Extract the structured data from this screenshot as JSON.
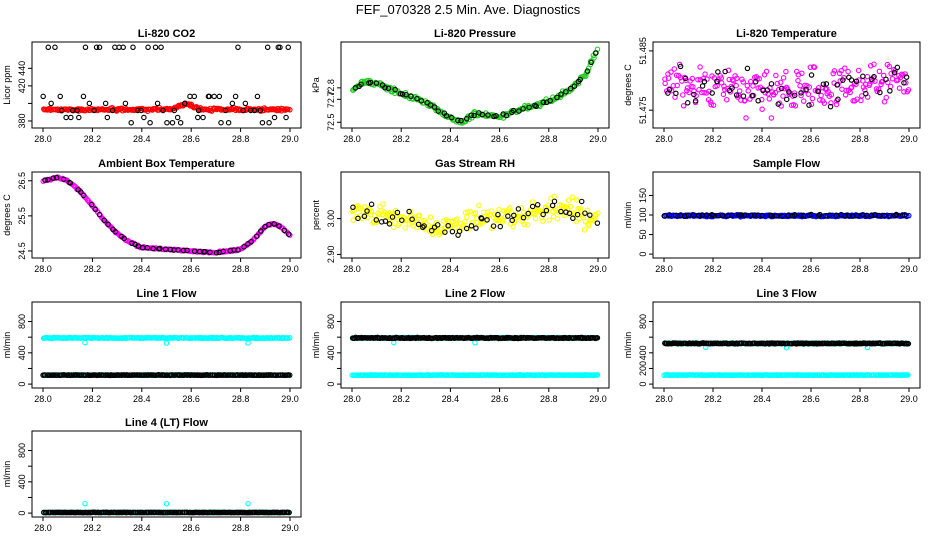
{
  "title": "FEF_070328  2.5 Min. Ave. Diagnostics",
  "colors": {
    "black": "#000000",
    "red": "#ff0000",
    "green": "#22cc22",
    "magenta": "#ff00ff",
    "yellow": "#ffff00",
    "blue": "#0000ff",
    "cyan": "#00ffff"
  },
  "chart_data": [
    {
      "id": "co2",
      "type": "scatter",
      "title": "Li-820 CO2",
      "ylabel": "Licor ppm",
      "xlim": [
        28.0,
        29.0
      ],
      "ylim": [
        372,
        470
      ],
      "yticks": [
        380,
        400,
        420,
        440
      ],
      "ytick_labels": [
        "380",
        "",
        "420",
        "440"
      ],
      "xticks": [
        28.0,
        28.2,
        28.4,
        28.6,
        28.8,
        29.0
      ],
      "series": [
        {
          "name": "dense",
          "color": "red",
          "baseline": 393,
          "noise": 1.5,
          "bump": {
            "center": 28.58,
            "width": 0.04,
            "height": 6
          }
        },
        {
          "name": "sparse",
          "color": "black",
          "levels": [
            378,
            384,
            392,
            400,
            408,
            464
          ]
        }
      ]
    },
    {
      "id": "pressure",
      "type": "scatter",
      "title": "Li-820 Pressure",
      "ylabel": "kPa",
      "xlim": [
        28.0,
        29.0
      ],
      "ylim": [
        72.45,
        73.2
      ],
      "yticks": [
        72.5,
        72.7,
        72.8
      ],
      "ytick_labels": [
        "72.5",
        "72.7",
        "72.8"
      ],
      "xticks": [
        28.0,
        28.2,
        28.4,
        28.6,
        28.8,
        29.0
      ],
      "curve_x": [
        28.0,
        28.05,
        28.1,
        28.2,
        28.3,
        28.38,
        28.45,
        28.5,
        28.6,
        28.7,
        28.8,
        28.9,
        28.95,
        29.0
      ],
      "curve_y": [
        72.78,
        72.85,
        72.84,
        72.75,
        72.68,
        72.56,
        72.5,
        72.58,
        72.55,
        72.62,
        72.68,
        72.8,
        72.92,
        73.15
      ],
      "series": [
        {
          "name": "dense",
          "color": "green",
          "noise": 0.02
        },
        {
          "name": "sparse",
          "color": "black"
        }
      ]
    },
    {
      "id": "li820temp",
      "type": "scatter",
      "title": "Li-820 Temperature",
      "ylabel": "degrees C",
      "xlim": [
        28.0,
        29.0
      ],
      "ylim": [
        51.472,
        51.4865
      ],
      "yticks": [
        51.475,
        51.485
      ],
      "ytick_labels": [
        "51.475",
        "51.485"
      ],
      "xticks": [
        28.0,
        28.2,
        28.4,
        28.6,
        28.8,
        29.0
      ],
      "curve_x": [
        28.0,
        28.2,
        28.4,
        28.6,
        28.8,
        29.0
      ],
      "curve_y": [
        51.4795,
        51.4785,
        51.478,
        51.4785,
        51.4795,
        51.4805
      ],
      "series": [
        {
          "name": "dense",
          "color": "magenta",
          "noise": 0.0035
        },
        {
          "name": "sparse",
          "color": "black",
          "noise": 0.003
        }
      ]
    },
    {
      "id": "boxtemp",
      "type": "scatter",
      "title": "Ambient Box Temperature",
      "ylabel": "degrees C",
      "xlim": [
        28.0,
        29.0
      ],
      "ylim": [
        24.3,
        26.75
      ],
      "yticks": [
        24.5,
        25.5,
        26.5
      ],
      "ytick_labels": [
        "24.5",
        "25.5",
        "26.5"
      ],
      "xticks": [
        28.0,
        28.2,
        28.4,
        28.6,
        28.8,
        29.0
      ],
      "curve_x": [
        28.0,
        28.06,
        28.1,
        28.15,
        28.2,
        28.25,
        28.3,
        28.35,
        28.4,
        28.5,
        28.6,
        28.7,
        28.8,
        28.85,
        28.9,
        28.93,
        28.96,
        29.0
      ],
      "curve_y": [
        26.5,
        26.6,
        26.5,
        26.2,
        25.8,
        25.35,
        25.0,
        24.75,
        24.6,
        24.55,
        24.5,
        24.45,
        24.55,
        24.8,
        25.2,
        25.3,
        25.2,
        24.95
      ],
      "series": [
        {
          "name": "dense",
          "color": "magenta",
          "noise": 0.02
        },
        {
          "name": "sparse",
          "color": "black"
        }
      ]
    },
    {
      "id": "rh",
      "type": "scatter",
      "title": "Gas Stream RH",
      "ylabel": "percent",
      "xlim": [
        28.0,
        29.0
      ],
      "ylim": [
        2.89,
        3.13
      ],
      "yticks": [
        2.9,
        3.0
      ],
      "ytick_labels": [
        "2.90",
        "3.00"
      ],
      "xticks": [
        28.0,
        28.2,
        28.4,
        28.6,
        28.8,
        29.0
      ],
      "curve_x": [
        28.0,
        28.2,
        28.35,
        28.5,
        28.7,
        28.85,
        29.0
      ],
      "curve_y": [
        3.02,
        3.0,
        2.97,
        2.99,
        3.01,
        3.03,
        2.99
      ],
      "series": [
        {
          "name": "dense",
          "color": "yellow",
          "noise": 0.03
        },
        {
          "name": "sparse",
          "color": "black",
          "noise": 0.03
        }
      ]
    },
    {
      "id": "sampleflow",
      "type": "scatter",
      "title": "Sample Flow",
      "ylabel": "ml/min",
      "xlim": [
        28.0,
        29.0
      ],
      "ylim": [
        -10,
        210
      ],
      "yticks": [
        0,
        50,
        100,
        150
      ],
      "ytick_labels": [
        "0",
        "50",
        "100",
        "150"
      ],
      "xticks": [
        28.0,
        28.2,
        28.4,
        28.6,
        28.8,
        29.0
      ],
      "series": [
        {
          "name": "dense",
          "color": "blue",
          "baseline": 98,
          "noise": 2
        },
        {
          "name": "sparse",
          "color": "black",
          "baseline": 99,
          "noise": 2
        }
      ]
    },
    {
      "id": "line1",
      "type": "scatter",
      "title": "Line 1 Flow",
      "ylabel": "ml/min",
      "xlim": [
        28.0,
        29.0
      ],
      "ylim": [
        -50,
        1050
      ],
      "yticks": [
        0,
        200,
        400,
        600,
        800
      ],
      "ytick_labels": [
        "0",
        "",
        "400",
        "",
        "800"
      ],
      "xticks": [
        28.0,
        28.2,
        28.4,
        28.6,
        28.8,
        29.0
      ],
      "series": [
        {
          "name": "high",
          "color": "cyan",
          "baseline": 590,
          "noise": 6,
          "outliers": [
            [
              28.17,
              530
            ],
            [
              28.5,
              525
            ],
            [
              28.83,
              525
            ]
          ]
        },
        {
          "name": "low-cyan",
          "color": "cyan",
          "baseline": 115,
          "noise": 3
        },
        {
          "name": "low-black",
          "color": "black",
          "baseline": 115,
          "noise": 3
        }
      ]
    },
    {
      "id": "line2",
      "type": "scatter",
      "title": "Line 2 Flow",
      "ylabel": "ml/min",
      "xlim": [
        28.0,
        29.0
      ],
      "ylim": [
        -50,
        1050
      ],
      "yticks": [
        0,
        200,
        400,
        600,
        800
      ],
      "ytick_labels": [
        "0",
        "",
        "400",
        "",
        "800"
      ],
      "xticks": [
        28.0,
        28.2,
        28.4,
        28.6,
        28.8,
        29.0
      ],
      "series": [
        {
          "name": "high-cyan",
          "color": "cyan",
          "baseline": 590,
          "noise": 6,
          "outliers": [
            [
              28.17,
              530
            ],
            [
              28.5,
              528
            ]
          ]
        },
        {
          "name": "high-black",
          "color": "black",
          "baseline": 590,
          "noise": 6
        },
        {
          "name": "low",
          "color": "cyan",
          "baseline": 115,
          "noise": 3
        }
      ]
    },
    {
      "id": "line3",
      "type": "scatter",
      "title": "Line 3 Flow",
      "ylabel": "ml/min",
      "xlim": [
        28.0,
        29.0
      ],
      "ylim": [
        -50,
        1050
      ],
      "yticks": [
        0,
        200,
        400,
        600,
        800
      ],
      "ytick_labels": [
        "0",
        "200",
        "400",
        "",
        "800"
      ],
      "xticks": [
        28.0,
        28.2,
        28.4,
        28.6,
        28.8,
        29.0
      ],
      "series": [
        {
          "name": "high-cyan",
          "color": "cyan",
          "baseline": 520,
          "noise": 6,
          "outliers": [
            [
              28.17,
              470
            ],
            [
              28.5,
              465
            ],
            [
              28.83,
              468
            ]
          ]
        },
        {
          "name": "high-black",
          "color": "black",
          "baseline": 520,
          "noise": 6
        },
        {
          "name": "low",
          "color": "cyan",
          "baseline": 115,
          "noise": 3
        }
      ]
    },
    {
      "id": "line4",
      "type": "scatter",
      "title": "Line 4 (LT) Flow",
      "ylabel": "ml/min",
      "xlim": [
        28.0,
        29.0
      ],
      "ylim": [
        -50,
        1050
      ],
      "yticks": [
        0,
        200,
        400,
        600,
        800
      ],
      "ytick_labels": [
        "0",
        "",
        "400",
        "",
        "800"
      ],
      "xticks": [
        28.0,
        28.2,
        28.4,
        28.6,
        28.8,
        29.0
      ],
      "series": [
        {
          "name": "baseline-cyan",
          "color": "cyan",
          "baseline": 8,
          "noise": 2,
          "outliers": [
            [
              28.17,
              120
            ],
            [
              28.5,
              120
            ],
            [
              28.83,
              120
            ]
          ]
        },
        {
          "name": "baseline-black",
          "color": "black",
          "baseline": 8,
          "noise": 2
        }
      ]
    }
  ]
}
